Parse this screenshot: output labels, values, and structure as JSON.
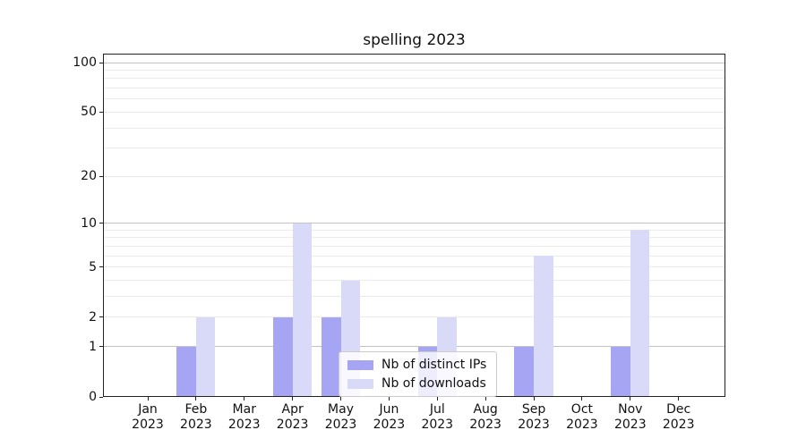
{
  "title": "spelling 2023",
  "legend": {
    "items": [
      {
        "label": "Nb of distinct IPs",
        "color": "#a5a5f3"
      },
      {
        "label": "Nb of downloads",
        "color": "#d9d9f8"
      }
    ]
  },
  "chart_data": {
    "type": "bar",
    "title": "spelling 2023",
    "categories": [
      "Jan 2023",
      "Feb 2023",
      "Mar 2023",
      "Apr 2023",
      "May 2023",
      "Jun 2023",
      "Jul 2023",
      "Aug 2023",
      "Sep 2023",
      "Oct 2023",
      "Nov 2023",
      "Dec 2023"
    ],
    "series": [
      {
        "name": "Nb of distinct IPs",
        "color": "#a5a5f3",
        "values": [
          0,
          1,
          0,
          2,
          2,
          0,
          1,
          0,
          1,
          0,
          1,
          0
        ]
      },
      {
        "name": "Nb of downloads",
        "color": "#d9d9f8",
        "values": [
          0,
          2,
          0,
          10,
          4,
          0,
          2,
          0,
          6,
          0,
          9,
          0
        ]
      }
    ],
    "yscale": "log1p",
    "yticks": [
      0,
      1,
      2,
      5,
      10,
      20,
      50,
      100
    ],
    "minor_yticks": [
      3,
      4,
      6,
      7,
      8,
      9,
      30,
      40,
      60,
      70,
      80,
      90
    ],
    "major_gridlines": [
      1,
      10,
      100
    ],
    "ylim": [
      0,
      112
    ],
    "grid": "horizontal",
    "legend_position": "inside lower center"
  }
}
